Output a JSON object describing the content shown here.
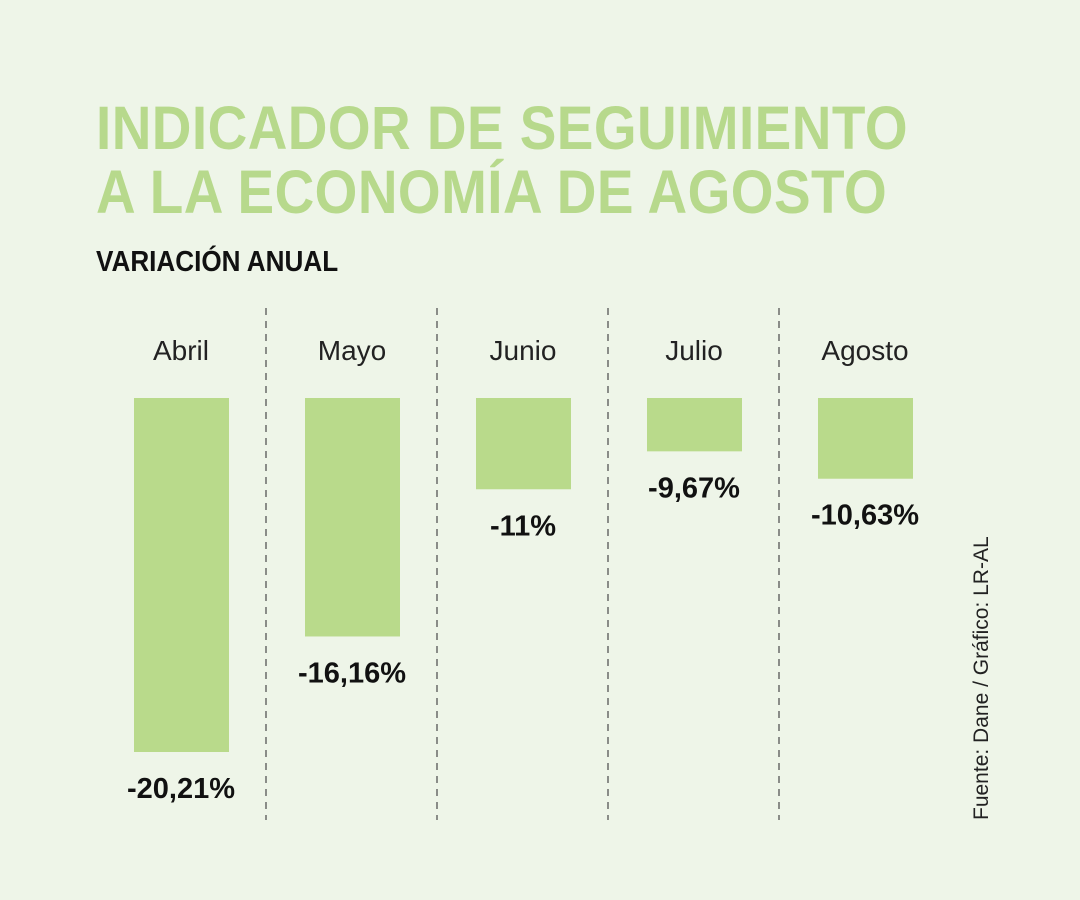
{
  "title_line1": "INDICADOR DE SEGUIMIENTO",
  "title_line2": "A LA ECONOMÍA DE AGOSTO",
  "subtitle": "VARIACIÓN ANUAL",
  "source": "Fuente: Dane / Gráfico: LR-AL",
  "colors": {
    "bar": "#b9da8b",
    "title": "#b7d98c",
    "background": "#eef5e8"
  },
  "chart_data": {
    "type": "bar",
    "title": "VARIACIÓN ANUAL",
    "categories": [
      "Abril",
      "Mayo",
      "Junio",
      "Julio",
      "Agosto"
    ],
    "values": [
      -20.21,
      -16.16,
      -11,
      -9.67,
      -10.63
    ],
    "labels": [
      "-20,21%",
      "-16,16%",
      "-11%",
      "-9,67%",
      "-10,63%"
    ],
    "ylim": [
      -7.8,
      -20.21
    ],
    "xlabel": "",
    "ylabel": "",
    "grid": false
  }
}
